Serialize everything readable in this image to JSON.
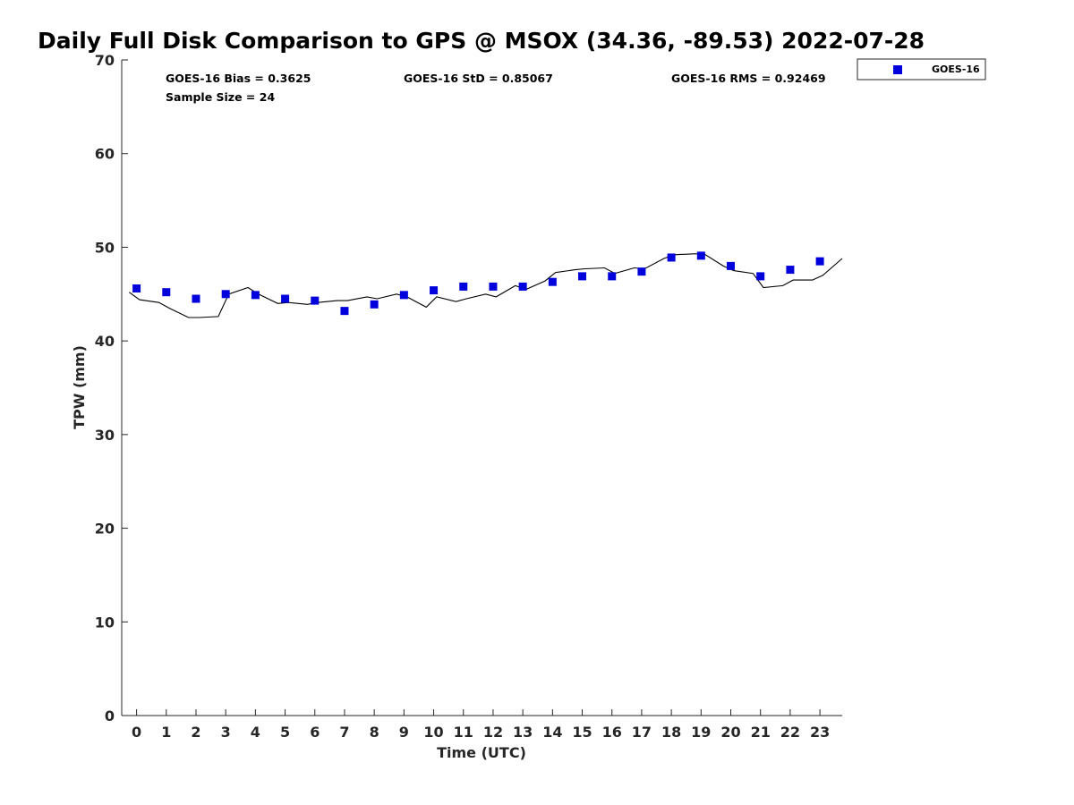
{
  "title": "Daily Full Disk Comparison to GPS @ MSOX (34.36, -89.53) 2022-07-28",
  "stats": {
    "bias": "GOES-16 Bias = 0.3625",
    "std": "GOES-16 StD = 0.85067",
    "rms": "GOES-16 RMS = 0.92469",
    "sample": "Sample Size = 24"
  },
  "legend": {
    "label": "GOES-16"
  },
  "colors": {
    "goes": "#0000dd",
    "gps_line": "#000000",
    "axis": "#262626"
  },
  "chart_data": {
    "type": "scatter",
    "title": "Daily Full Disk Comparison to GPS @ MSOX (34.36, -89.53) 2022-07-28",
    "xlabel": "Time (UTC)",
    "ylabel": "TPW (mm)",
    "xlim": [
      -0.5,
      23.75
    ],
    "ylim": [
      0,
      70
    ],
    "xticks": [
      0,
      1,
      2,
      3,
      4,
      5,
      6,
      7,
      8,
      9,
      10,
      11,
      12,
      13,
      14,
      15,
      16,
      17,
      18,
      19,
      20,
      21,
      22,
      23
    ],
    "yticks": [
      0,
      10,
      20,
      30,
      40,
      50,
      60,
      70
    ],
    "grid": false,
    "legend_position": "outside-top-right",
    "series": [
      {
        "name": "GOES-16",
        "type": "scatter",
        "marker": "square",
        "x": [
          0,
          1,
          2,
          3,
          4,
          5,
          6,
          7,
          8,
          9,
          10,
          11,
          12,
          13,
          14,
          15,
          16,
          17,
          18,
          19,
          20,
          21,
          22,
          23
        ],
        "y": [
          45.6,
          45.2,
          44.5,
          45.0,
          44.9,
          44.5,
          44.3,
          43.2,
          43.9,
          44.9,
          45.4,
          45.8,
          45.8,
          45.8,
          46.3,
          46.9,
          46.9,
          47.4,
          48.9,
          49.1,
          48.0,
          46.9,
          47.6,
          48.5
        ]
      },
      {
        "type": "line",
        "x": [
          -0.25,
          0.1,
          0.75,
          1.1,
          1.75,
          2.1,
          2.75,
          3.1,
          3.75,
          4.1,
          4.75,
          5.1,
          5.75,
          6.1,
          6.75,
          7.1,
          7.75,
          8.1,
          8.75,
          9.1,
          9.75,
          10.1,
          10.75,
          11.1,
          11.75,
          12.1,
          12.75,
          13.1,
          13.75,
          14.1,
          14.75,
          15.1,
          15.75,
          16.1,
          16.75,
          17.1,
          17.75,
          18.1,
          18.75,
          19.1,
          19.75,
          20.1,
          20.75,
          21.1,
          21.75,
          22.1,
          22.75,
          23.1,
          23.75
        ],
        "y": [
          45.2,
          44.4,
          44.1,
          43.5,
          42.5,
          42.5,
          42.6,
          45.0,
          45.7,
          45.0,
          44.0,
          44.1,
          43.9,
          44.1,
          44.3,
          44.3,
          44.7,
          44.5,
          45.0,
          44.7,
          43.6,
          44.7,
          44.2,
          44.5,
          45.0,
          44.7,
          45.9,
          45.5,
          46.4,
          47.3,
          47.6,
          47.7,
          47.8,
          47.2,
          47.8,
          47.7,
          48.8,
          49.2,
          49.3,
          49.3,
          48.0,
          47.5,
          47.2,
          45.7,
          45.9,
          46.5,
          46.5,
          47.0,
          48.8
        ]
      }
    ]
  }
}
